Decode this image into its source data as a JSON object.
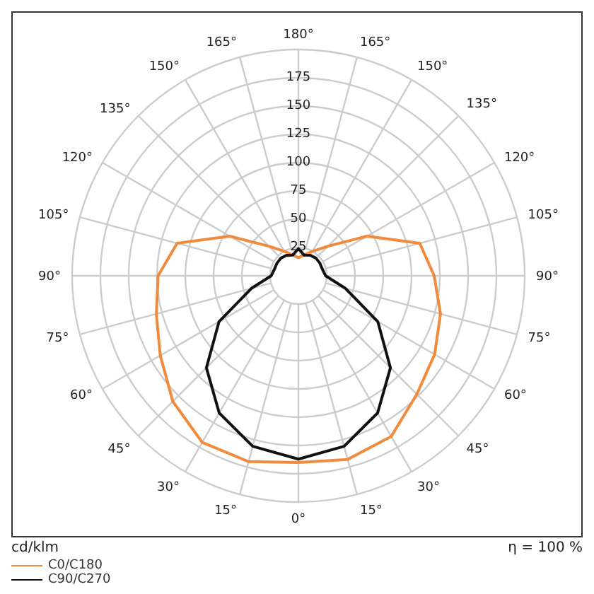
{
  "chart_data": {
    "type": "radar",
    "ylabel": "cd/klm",
    "annotations": [
      "η = 100 %"
    ],
    "categories": [
      "180°",
      "165°",
      "150°",
      "135°",
      "120°",
      "105°",
      "90°",
      "75°",
      "60°",
      "45°",
      "30°",
      "15°",
      "0°",
      "15°",
      "30°",
      "45°",
      "60°",
      "75°",
      "90°",
      "105°",
      "120°",
      "135°",
      "150°",
      "165°"
    ],
    "series": [
      {
        "name": "C0/C180",
        "color": "#f08a3c",
        "values": [
          16,
          19,
          25,
          37,
          70,
          111,
          120,
          130,
          139,
          148,
          164,
          168,
          165,
          170,
          170,
          157,
          141,
          130,
          124,
          111,
          70,
          37,
          25,
          19
        ]
      },
      {
        "name": "C90/C270",
        "color": "#111111",
        "values": [
          24,
          19,
          21,
          22,
          22,
          22,
          24,
          43,
          81,
          115,
          140,
          156,
          162,
          156,
          140,
          115,
          81,
          43,
          24,
          22,
          22,
          22,
          21,
          19
        ]
      }
    ],
    "ylim": [
      0,
      200
    ],
    "yticks": [
      25,
      50,
      75,
      100,
      125,
      150,
      175
    ],
    "grid": true,
    "legend": "bottom left",
    "marker": "none",
    "line_style": "solid"
  }
}
